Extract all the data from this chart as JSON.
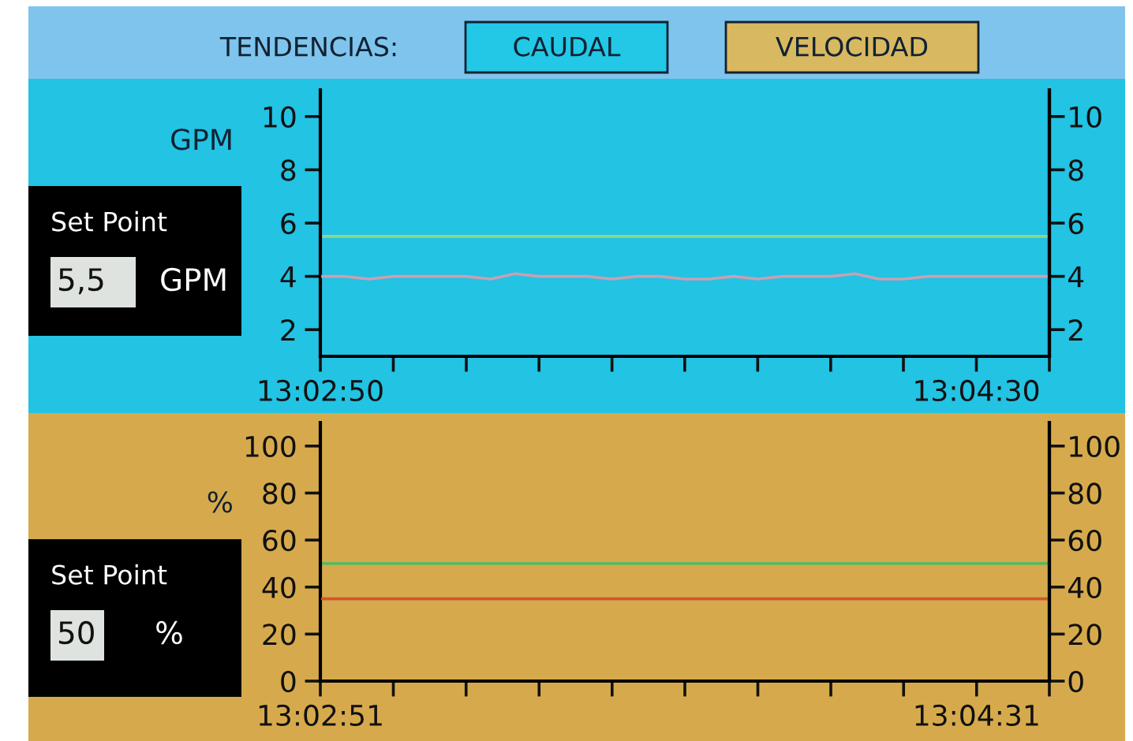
{
  "chart_data": [
    {
      "type": "line",
      "ylabel": "GPM",
      "annotations": [
        "TENDENCIAS:",
        "CAUDAL",
        "VELOCIDAD",
        "Set Point",
        "5,5",
        "GPM"
      ],
      "series": [
        {
          "color": "#c8a0b4",
          "x": [
            13.04722,
            13.04825,
            13.04928,
            13.05031,
            13.05134,
            13.05237,
            13.0534,
            13.05443,
            13.05546,
            13.05648,
            13.05751,
            13.05854,
            13.05957,
            13.0606,
            13.06163,
            13.06265,
            13.06368,
            13.06471,
            13.06574,
            13.06677,
            13.0678,
            13.06883,
            13.06986,
            13.07089,
            13.07191,
            13.07294,
            13.07397,
            13.075,
            13.07603,
            13.07706,
            13.07809
          ],
          "values": [
            4.0,
            4.0,
            3.9,
            4.0,
            4.0,
            4.0,
            4.0,
            3.9,
            4.1,
            4.0,
            4.0,
            4.0,
            3.9,
            4.0,
            4.0,
            3.9,
            3.9,
            4.0,
            3.9,
            4.0,
            4.0,
            4.0,
            4.1,
            3.9,
            3.9,
            4.0,
            4.0,
            4.0,
            4.0,
            4.0,
            4.0
          ]
        }
      ],
      "ref_lines": [
        {
          "axis": "y",
          "value": 5.5,
          "label": null,
          "color": "#8ed68a"
        }
      ],
      "xlim": [
        13.04722,
        13.07809
      ],
      "xticks": [
        {
          "value": 13.04722,
          "label": "13:02:50"
        },
        {
          "value": 13.05031,
          "label": null
        },
        {
          "value": 13.0534,
          "label": null
        },
        {
          "value": 13.05648,
          "label": null
        },
        {
          "value": 13.05957,
          "label": null
        },
        {
          "value": 13.06265,
          "label": null
        },
        {
          "value": 13.06574,
          "label": null
        },
        {
          "value": 13.06883,
          "label": null
        },
        {
          "value": 13.07191,
          "label": null
        },
        {
          "value": 13.075,
          "label": "13:04:30"
        },
        {
          "value": 13.07809,
          "label": null
        }
      ],
      "ylim": [
        1,
        11
      ],
      "yticks": [
        2,
        4,
        6,
        8,
        10
      ],
      "y2lim": [
        1,
        11
      ],
      "y2ticks": [
        2,
        4,
        6,
        8,
        10
      ],
      "grid": false,
      "legend": false,
      "marker": "none",
      "line_style": "solid"
    },
    {
      "type": "line",
      "ylabel": "%",
      "annotations": [
        "Set Point",
        "50",
        "%"
      ],
      "series": [
        {
          "color": "#d2552a",
          "x": [
            13.0475,
            13.06293,
            13.07836
          ],
          "values": [
            35,
            35,
            35
          ]
        }
      ],
      "ref_lines": [
        {
          "axis": "y",
          "value": 50,
          "label": null,
          "color": "#5cb85c"
        }
      ],
      "xlim": [
        13.0475,
        13.07836
      ],
      "xticks": [
        {
          "value": 13.0475,
          "label": "13:02:51"
        },
        {
          "value": 13.05059,
          "label": null
        },
        {
          "value": 13.05367,
          "label": null
        },
        {
          "value": 13.05676,
          "label": null
        },
        {
          "value": 13.05985,
          "label": null
        },
        {
          "value": 13.06293,
          "label": null
        },
        {
          "value": 13.06602,
          "label": null
        },
        {
          "value": 13.06911,
          "label": null
        },
        {
          "value": 13.07219,
          "label": null
        },
        {
          "value": 13.07528,
          "label": "13:04:31"
        },
        {
          "value": 13.07836,
          "label": null
        }
      ],
      "ylim": [
        0,
        110
      ],
      "yticks": [
        0,
        20,
        40,
        60,
        80,
        100
      ],
      "y2lim": [
        0,
        110
      ],
      "y2ticks": [
        0,
        20,
        40,
        60,
        80,
        100
      ],
      "grid": false,
      "legend": false,
      "marker": "none",
      "line_style": "solid"
    }
  ]
}
